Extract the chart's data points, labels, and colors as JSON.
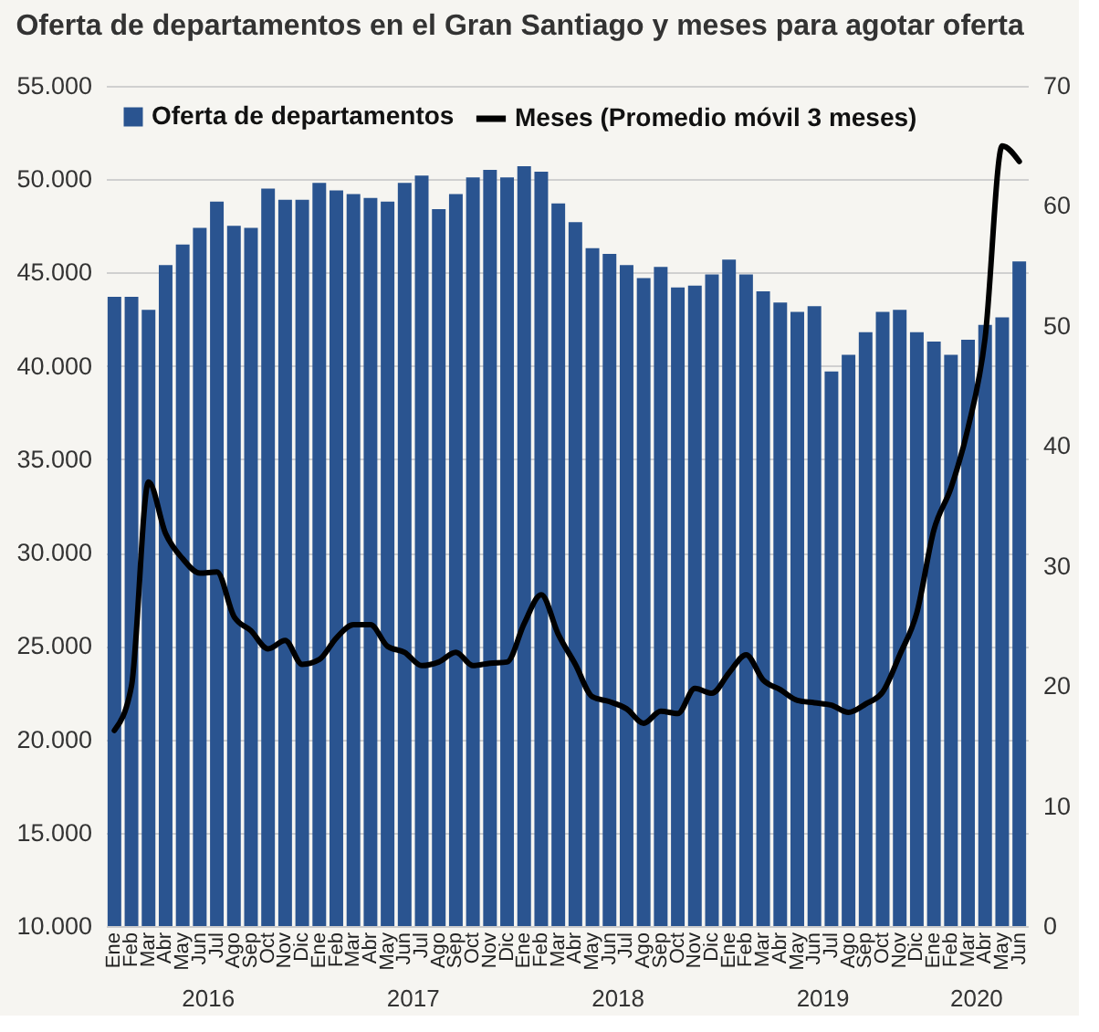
{
  "chart_data": {
    "type": "bar",
    "title": "Oferta de departamentos en el Gran Santiago y meses para agotar oferta",
    "categories": [
      "Ene",
      "Feb",
      "Mar",
      "Abr",
      "May",
      "Jun",
      "Jul",
      "Ago",
      "Sep",
      "Oct",
      "Nov",
      "Dic",
      "Ene",
      "Feb",
      "Mar",
      "Abr",
      "May",
      "Jun",
      "Jul",
      "Ago",
      "Sep",
      "Oct",
      "Nov",
      "Dic",
      "Ene",
      "Feb",
      "Mar",
      "Abr",
      "May",
      "Jun",
      "Jul",
      "Ago",
      "Sep",
      "Oct",
      "Nov",
      "Dic",
      "Ene",
      "Feb",
      "Mar",
      "Abr",
      "May",
      "Jun",
      "Jul",
      "Ago",
      "Sep",
      "Oct",
      "Nov",
      "Dic",
      "Ene",
      "Feb",
      "Mar",
      "Abr",
      "May",
      "Jun"
    ],
    "series": [
      {
        "name": "Oferta de departamentos",
        "color": "#2a5490",
        "values": [
          43700,
          43700,
          43000,
          45400,
          46500,
          47400,
          48800,
          47500,
          47400,
          49500,
          48900,
          48900,
          49800,
          49400,
          49200,
          49000,
          48800,
          49800,
          50200,
          48400,
          49200,
          50100,
          50500,
          50100,
          50700,
          50400,
          48700,
          47700,
          46300,
          46000,
          45400,
          44700,
          45300,
          44200,
          44300,
          44900,
          45700,
          44900,
          44000,
          43400,
          42900,
          43200,
          39700,
          40600,
          41800,
          42900,
          43000,
          41800,
          41300,
          40600,
          41400,
          42200,
          42600,
          45600
        ]
      },
      {
        "name": "Meses (Promedio móvil 3 meses)",
        "type": "line",
        "axis": "y2",
        "color": "#000000",
        "values": [
          16.3,
          20.0,
          37.0,
          32.7,
          30.6,
          29.4,
          29.5,
          25.8,
          24.6,
          23.1,
          23.8,
          21.8,
          22.2,
          24.0,
          25.1,
          25.1,
          23.3,
          22.8,
          21.7,
          22.0,
          22.8,
          21.7,
          21.9,
          22.0,
          25.2,
          27.6,
          24.3,
          21.8,
          19.1,
          18.7,
          18.1,
          16.9,
          17.9,
          17.7,
          19.8,
          19.4,
          21.1,
          22.6,
          20.5,
          19.7,
          18.8,
          18.6,
          18.4,
          17.8,
          18.5,
          19.5,
          22.6,
          26.1,
          33.0,
          36.5,
          41.5,
          49.0,
          65.0,
          63.7
        ]
      }
    ],
    "ylim": [
      10000,
      55000
    ],
    "yticks": [
      {
        "value": 10000,
        "label": "10.000"
      },
      {
        "value": 15000,
        "label": "15.000"
      },
      {
        "value": 20000,
        "label": "20.000"
      },
      {
        "value": 25000,
        "label": "25.000"
      },
      {
        "value": 30000,
        "label": "30.000"
      },
      {
        "value": 35000,
        "label": "35.000"
      },
      {
        "value": 40000,
        "label": "40.000"
      },
      {
        "value": 45000,
        "label": "45.000"
      },
      {
        "value": 50000,
        "label": "50.000"
      },
      {
        "value": 55000,
        "label": "55.000"
      }
    ],
    "y2lim": [
      0,
      70
    ],
    "y2ticks": [
      0,
      10,
      20,
      30,
      40,
      50,
      60,
      70
    ],
    "grid": "y",
    "legend": "top",
    "marker": "none",
    "line_style": "solid",
    "annotations": [
      "2016",
      "2017",
      "2018",
      "2019",
      "2020"
    ]
  }
}
